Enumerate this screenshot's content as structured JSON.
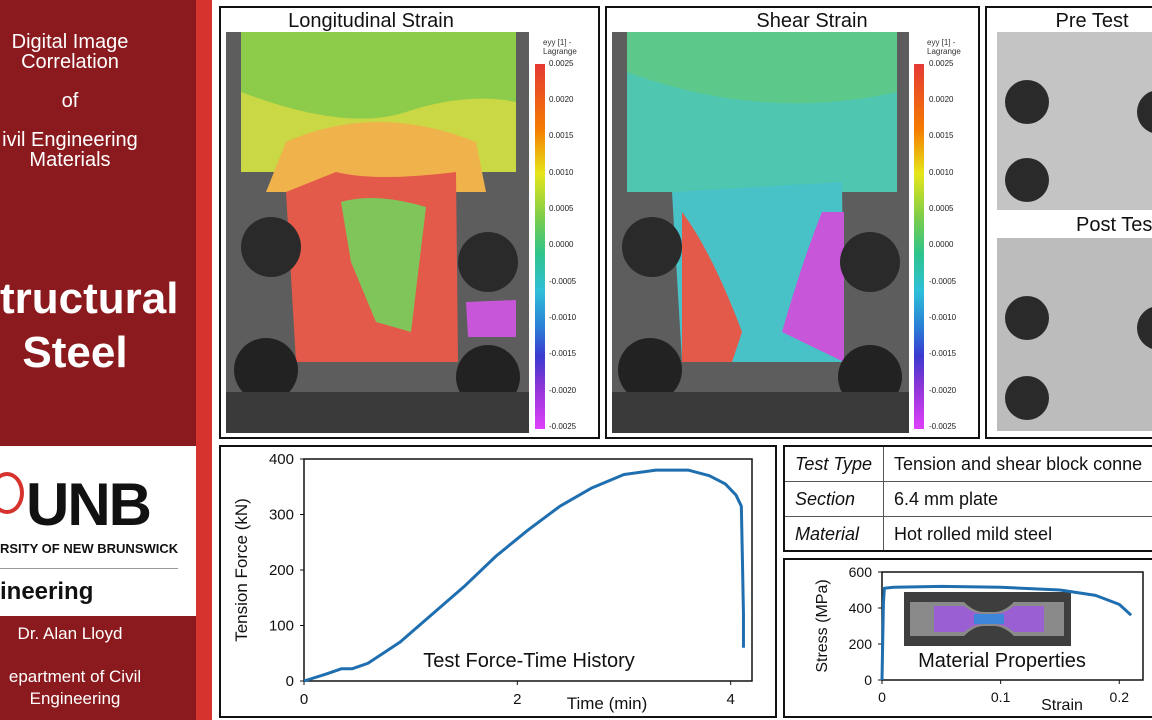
{
  "sidebar": {
    "title_line1": "Digital Image Correlation",
    "title_of": "of",
    "title_line3": "ivil Engineering Materials",
    "topic": "tructural Steel",
    "logo": "UNB",
    "university": "RSITY OF NEW BRUNSWICK",
    "faculty": "ineering",
    "author": "Dr. Alan Lloyd",
    "department": "epartment of Civil Engineering"
  },
  "panels": {
    "longitudinal_title": "Longitudinal Strain",
    "shear_title": "Shear Strain",
    "pre_test": "Pre Test",
    "post_test": "Post Test",
    "colorbar_label": "eyy [1] - Lagrange",
    "colorbar_ticks": [
      "0.0025",
      "0.0020",
      "0.0015",
      "0.0010",
      "0.0005",
      "0.0000",
      "-0.0005",
      "-0.0010",
      "-0.0015",
      "-0.0020",
      "-0.0025"
    ]
  },
  "info_table": [
    {
      "key": "Test Type",
      "value": "Tension and shear block conne"
    },
    {
      "key": "Section",
      "value": "6.4 mm plate"
    },
    {
      "key": "Material",
      "value": "Hot rolled mild steel"
    }
  ],
  "chart_data": [
    {
      "type": "line",
      "title": "Test Force-Time History",
      "xlabel": "Time (min)",
      "ylabel": "Tension Force (kN)",
      "xlim": [
        0,
        4.2
      ],
      "ylim": [
        0,
        400
      ],
      "xticks": [
        "0",
        "2",
        "4"
      ],
      "yticks": [
        "0",
        "100",
        "200",
        "300",
        "400"
      ],
      "series": [
        {
          "x": [
            0,
            0.2,
            0.35,
            0.45,
            0.6,
            0.9,
            1.2,
            1.5,
            1.8,
            2.1,
            2.4,
            2.7,
            3.0,
            3.3,
            3.6,
            3.8,
            3.95,
            4.05,
            4.1,
            4.11,
            4.12,
            4.12
          ],
          "y": [
            0,
            12,
            22,
            22,
            32,
            70,
            120,
            170,
            225,
            272,
            315,
            348,
            372,
            380,
            380,
            370,
            355,
            335,
            315,
            220,
            120,
            60
          ]
        }
      ],
      "color": "#1f6fb0",
      "grid": false
    },
    {
      "type": "line",
      "title": "Material Properties",
      "xlabel": "Strain",
      "ylabel": "Stress (MPa)",
      "xlim": [
        0,
        0.22
      ],
      "ylim": [
        0,
        600
      ],
      "xticks": [
        "0",
        "0.1",
        "0.2"
      ],
      "yticks": [
        "0",
        "200",
        "400",
        "600"
      ],
      "series": [
        {
          "x": [
            0,
            0.0012,
            0.002,
            0.01,
            0.05,
            0.1,
            0.15,
            0.18,
            0.2,
            0.21
          ],
          "y": [
            0,
            430,
            510,
            515,
            520,
            515,
            500,
            470,
            420,
            360
          ]
        }
      ],
      "color": "#1f6fb0",
      "grid": false
    }
  ]
}
